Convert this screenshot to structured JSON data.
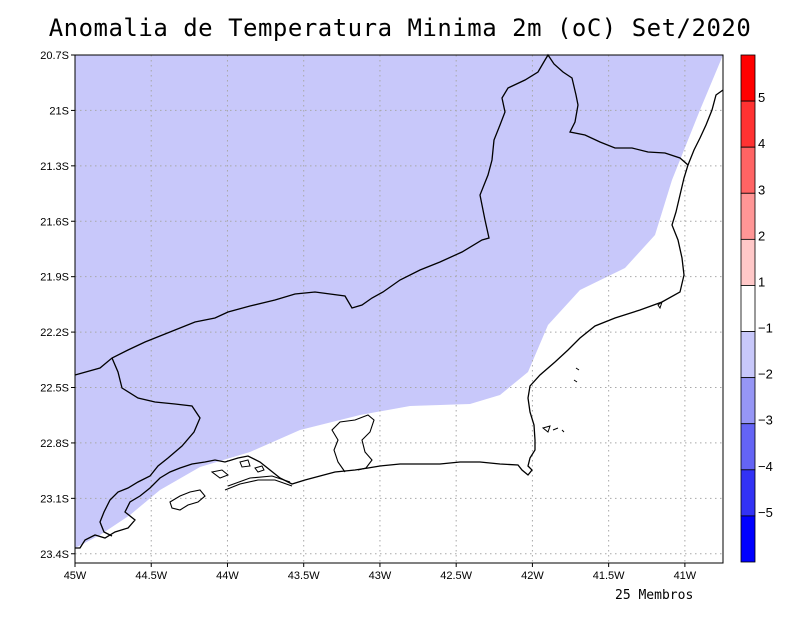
{
  "title": "Anomalia de Temperatura Minima 2m (oC) Set/2020",
  "footer": "25 Membros",
  "map": {
    "lon_range": [
      -45.0,
      -40.75
    ],
    "lat_range": [
      -23.45,
      -20.7
    ],
    "lon_ticks": [
      "45W",
      "44.5W",
      "44W",
      "43.5W",
      "43W",
      "42.5W",
      "42W",
      "41.5W",
      "41W"
    ],
    "lat_ticks": [
      "20.7S",
      "21S",
      "21.3S",
      "21.6S",
      "21.9S",
      "22.2S",
      "22.5S",
      "22.8S",
      "23.1S",
      "23.4S"
    ],
    "grid": true,
    "shaded_anomaly_class": "-2 to -1",
    "shade_color": "#c8c8fa"
  },
  "colorbar": {
    "labels": [
      "5",
      "4",
      "3",
      "2",
      "1",
      "−1",
      "−2",
      "−3",
      "−4",
      "−5"
    ],
    "colors": [
      "#ff0000",
      "#ff3232",
      "#ff6464",
      "#ff9696",
      "#ffc8c8",
      "#ffffff",
      "#c8c8fa",
      "#9696f5",
      "#6464f5",
      "#3232f5",
      "#0000ff"
    ]
  }
}
